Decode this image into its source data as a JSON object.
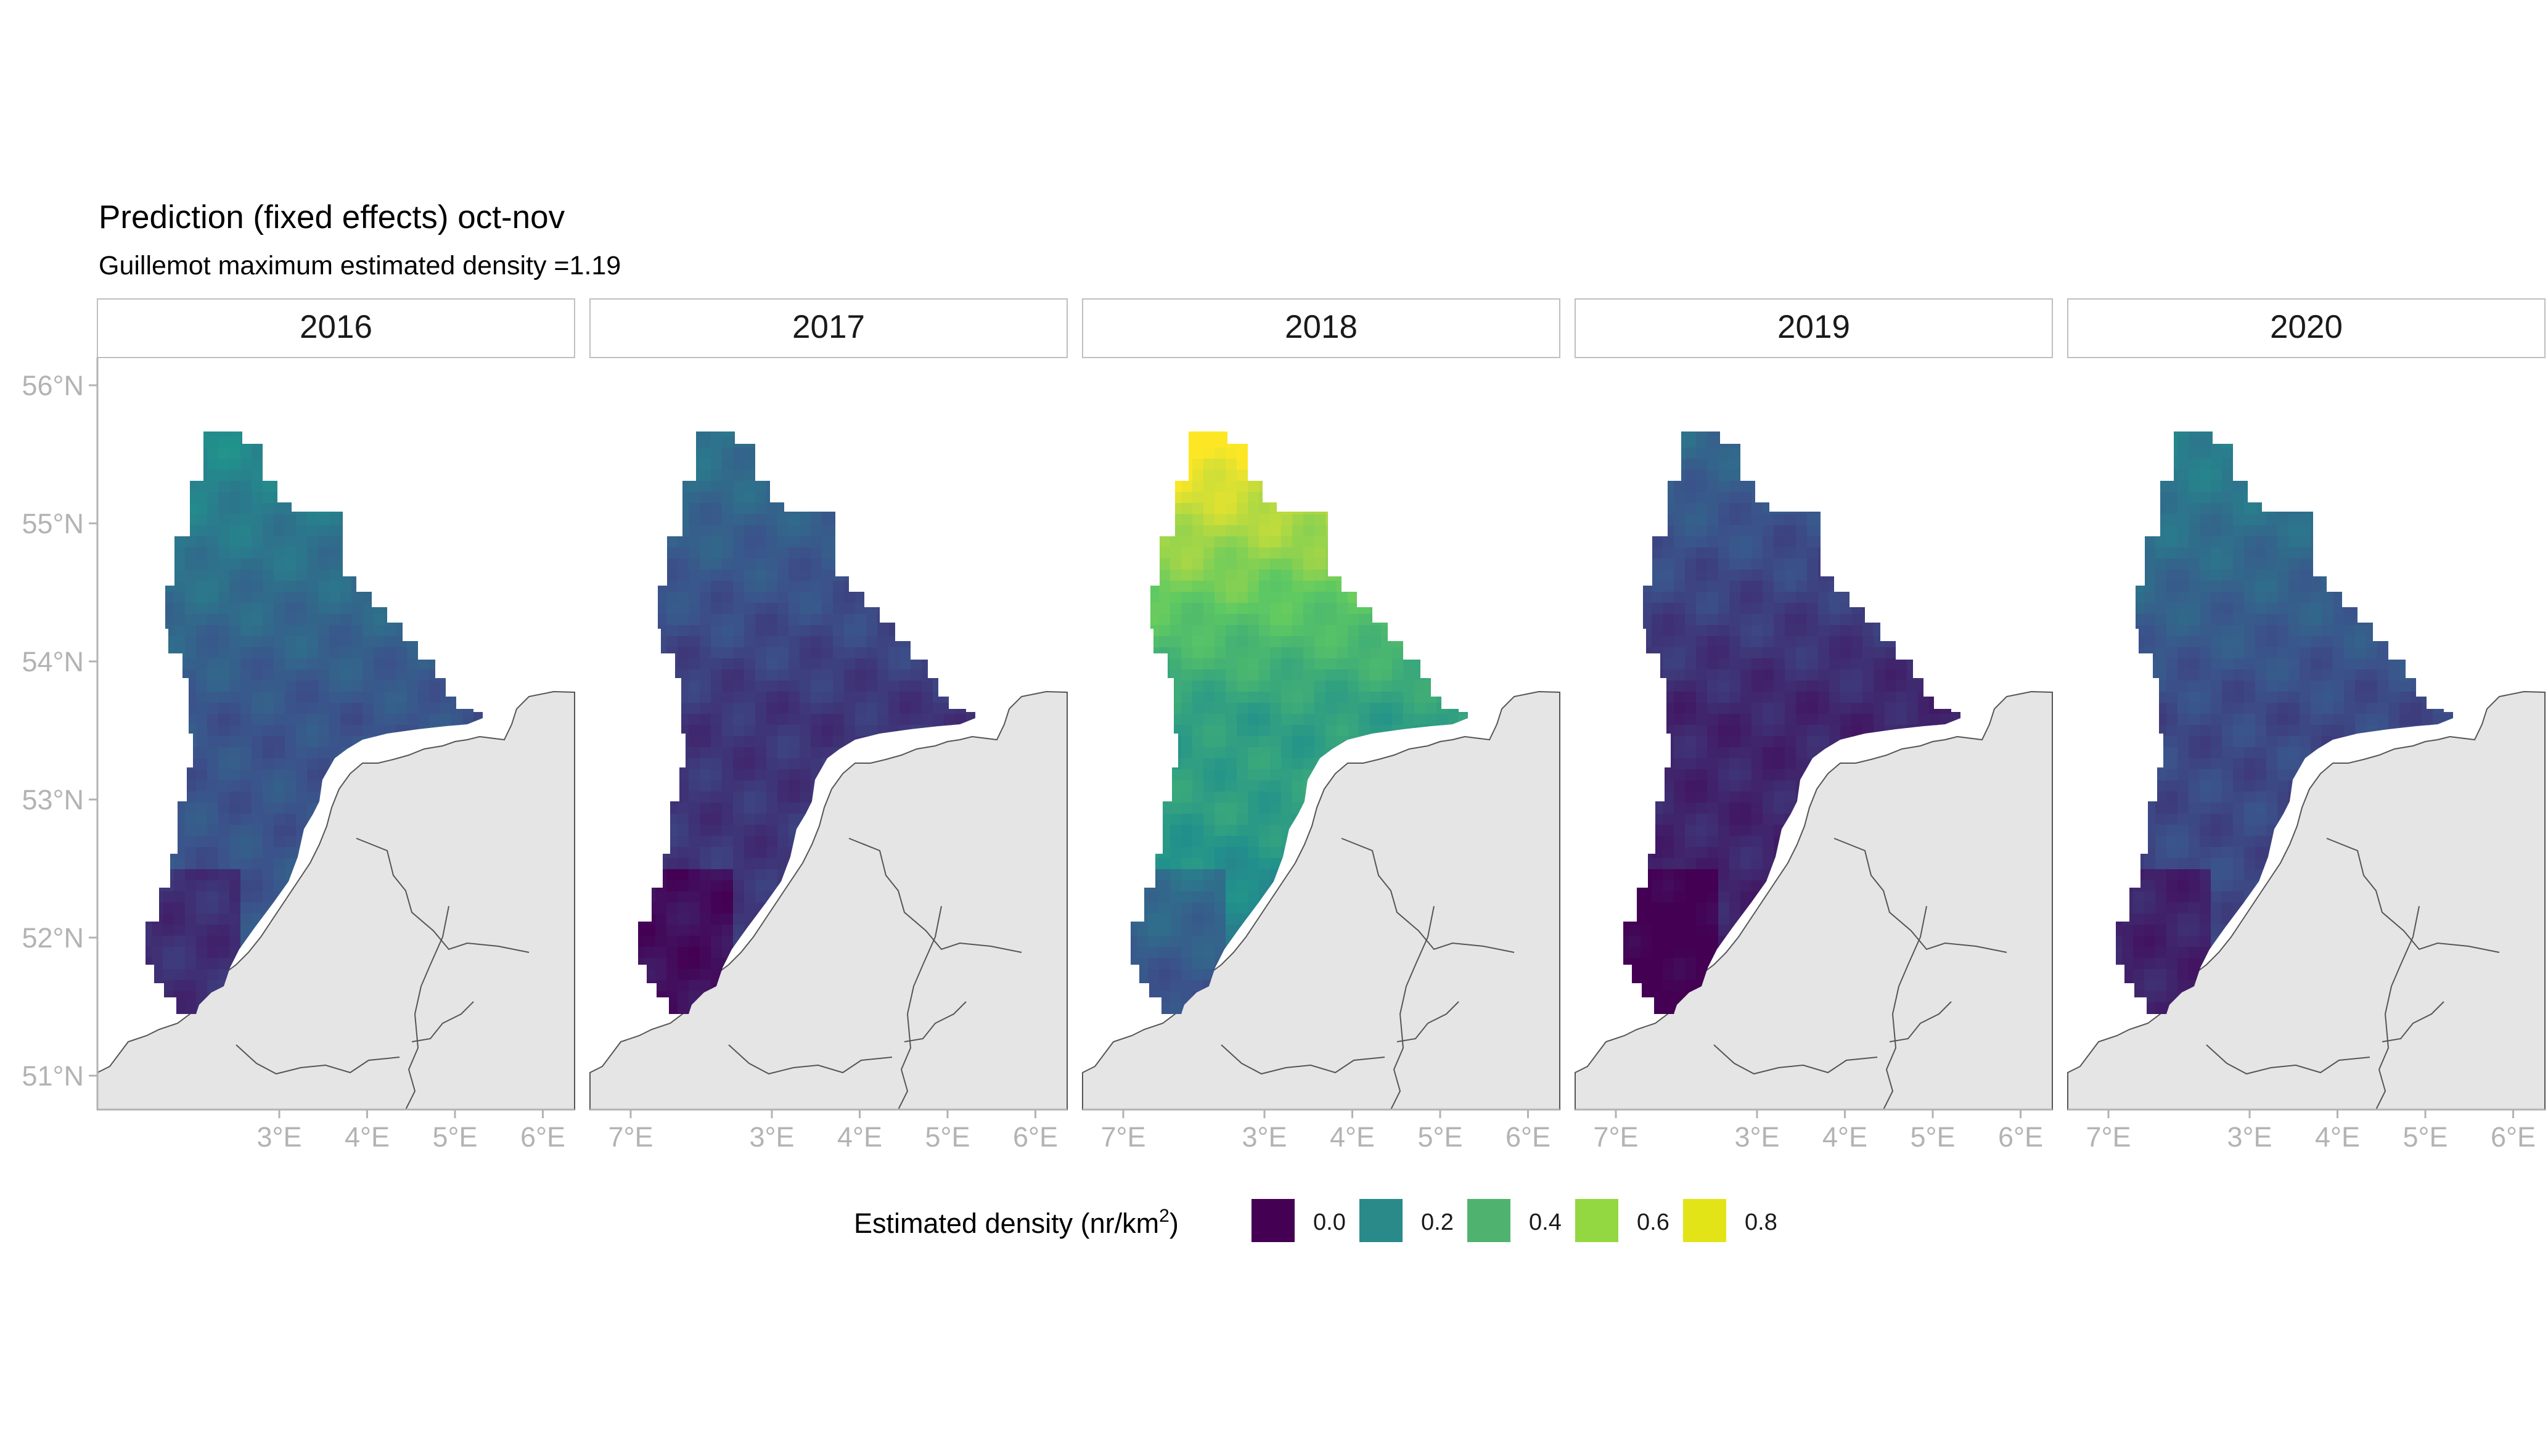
{
  "title": "Prediction (fixed effects) oct-nov",
  "subtitle": "Guillemot maximum estimated density =1.19",
  "panels": [
    {
      "label": "2016",
      "level": 0.32
    },
    {
      "label": "2017",
      "level": 0.22
    },
    {
      "label": "2018",
      "level": 0.62
    },
    {
      "label": "2019",
      "level": 0.17
    },
    {
      "label": "2020",
      "level": 0.28
    }
  ],
  "y_axis_ticks": [
    "56°N",
    "55°N",
    "54°N",
    "53°N",
    "52°N",
    "51°N"
  ],
  "x_axis_ticks": [
    "3°E",
    "4°E",
    "5°E",
    "6°E",
    "7°E"
  ],
  "legend": {
    "title_prefix": "Estimated density (nr/km",
    "title_sup": "2",
    "title_suffix": ")",
    "items": [
      {
        "label": "0.0",
        "color": "#440154"
      },
      {
        "label": "0.2",
        "color": "#2a8a8a"
      },
      {
        "label": "0.4",
        "color": "#4fb36f"
      },
      {
        "label": "0.6",
        "color": "#93d741"
      },
      {
        "label": "0.8",
        "color": "#e3e418"
      }
    ]
  },
  "colors": {
    "land": "#e5e5e5",
    "coast": "#555555",
    "strip_border": "#bfbfbf",
    "axis_text": "#b3b3b3"
  }
}
